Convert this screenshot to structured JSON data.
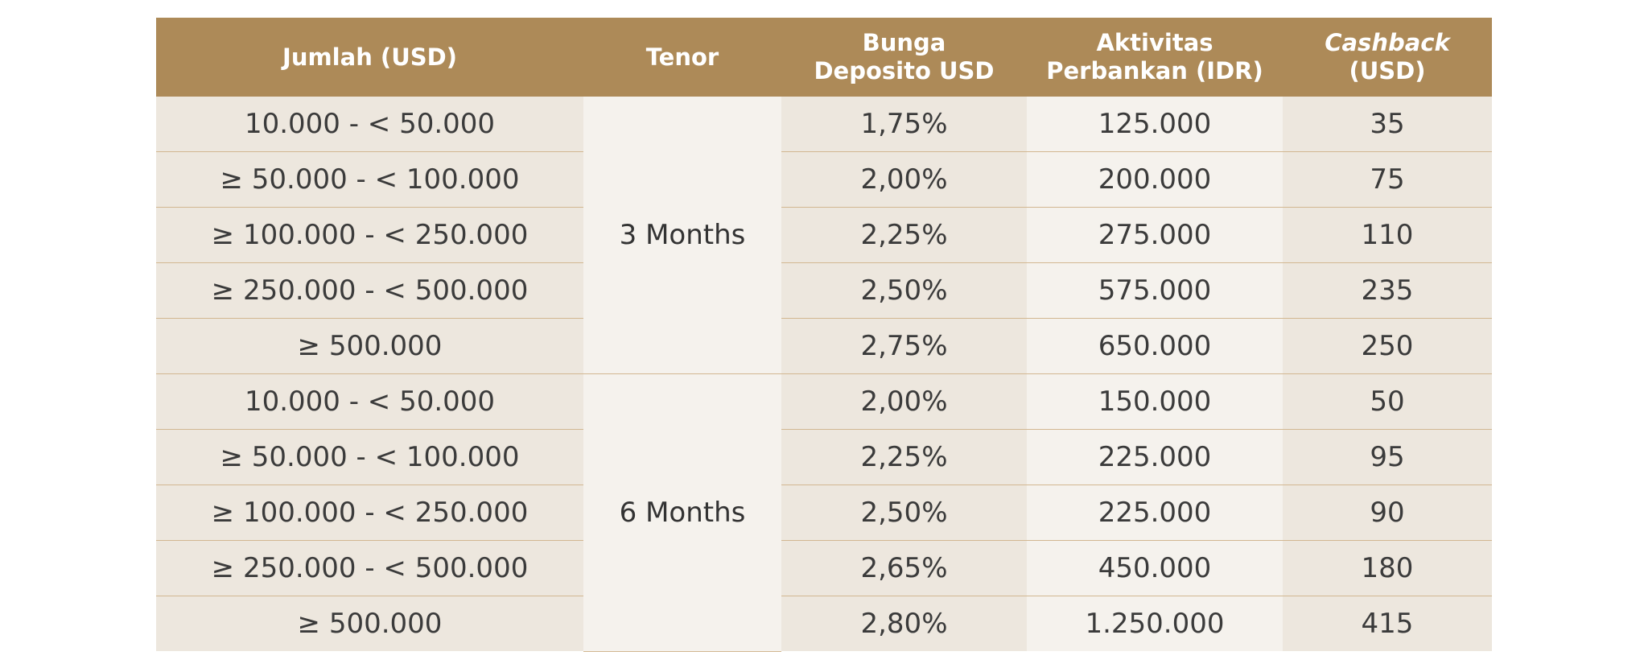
{
  "headers": {
    "amount": "Jumlah (USD)",
    "tenor": "Tenor",
    "rate_line1": "Bunga",
    "rate_line2": "Deposito USD",
    "activity_line1": "Aktivitas",
    "activity_line2": "Perbankan (IDR)",
    "cashback_line1": "Cashback",
    "cashback_line2": "(USD)"
  },
  "groups": [
    {
      "tenor": "3 Months",
      "rows": [
        {
          "amount": "10.000 - < 50.000",
          "rate": "1,75%",
          "activity": "125.000",
          "cashback": "35"
        },
        {
          "amount": "≥ 50.000 - < 100.000",
          "rate": "2,00%",
          "activity": "200.000",
          "cashback": "75"
        },
        {
          "amount": "≥ 100.000 - < 250.000",
          "rate": "2,25%",
          "activity": "275.000",
          "cashback": "110"
        },
        {
          "amount": "≥ 250.000 - < 500.000",
          "rate": "2,50%",
          "activity": "575.000",
          "cashback": "235"
        },
        {
          "amount": "≥ 500.000",
          "rate": "2,75%",
          "activity": "650.000",
          "cashback": "250"
        }
      ]
    },
    {
      "tenor": "6 Months",
      "rows": [
        {
          "amount": "10.000 - < 50.000",
          "rate": "2,00%",
          "activity": "150.000",
          "cashback": "50"
        },
        {
          "amount": "≥ 50.000 - < 100.000",
          "rate": "2,25%",
          "activity": "225.000",
          "cashback": "95"
        },
        {
          "amount": "≥ 100.000 - < 250.000",
          "rate": "2,50%",
          "activity": "225.000",
          "cashback": "90"
        },
        {
          "amount": "≥ 250.000 - < 500.000",
          "rate": "2,65%",
          "activity": "450.000",
          "cashback": "180"
        },
        {
          "amount": "≥ 500.000",
          "rate": "2,80%",
          "activity": "1.250.000",
          "cashback": "415"
        }
      ]
    }
  ],
  "colors": {
    "header_bg": "#ad8a58",
    "header_text": "#ffffff",
    "cell_dark": "#ede7de",
    "cell_light": "#f5f2ed",
    "row_line": "#d2b791",
    "text": "#3b3b3b"
  }
}
